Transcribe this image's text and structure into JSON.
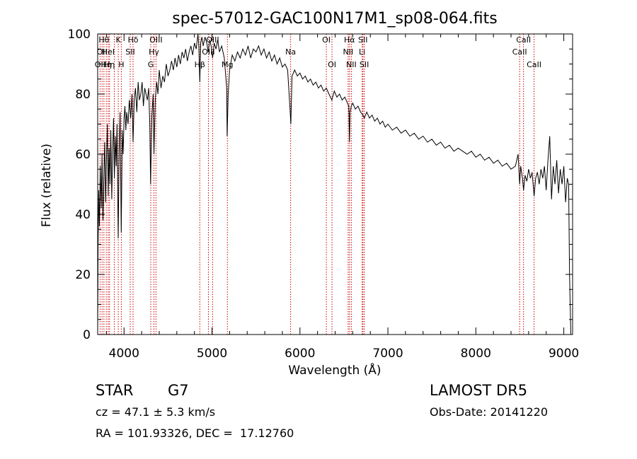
{
  "chart_data": {
    "type": "line",
    "title": "spec-57012-GAC100N17M1_sp08-064.fits",
    "xlabel": "Wavelength (Å)",
    "ylabel": "Flux (relative)",
    "xlim": [
      3700,
      9100
    ],
    "ylim": [
      0,
      100
    ],
    "xticks": [
      "4000",
      "5000",
      "6000",
      "7000",
      "8000",
      "9000"
    ],
    "yticks": [
      "0",
      "20",
      "40",
      "60",
      "80",
      "100"
    ],
    "line_color": "#000000",
    "marker_color": "#cc0000",
    "spectrum": [
      [
        3700,
        0
      ],
      [
        3705,
        30
      ],
      [
        3712,
        48
      ],
      [
        3720,
        36
      ],
      [
        3730,
        56
      ],
      [
        3740,
        42
      ],
      [
        3750,
        60
      ],
      [
        3760,
        38
      ],
      [
        3770,
        52
      ],
      [
        3780,
        64
      ],
      [
        3790,
        44
      ],
      [
        3800,
        58
      ],
      [
        3810,
        70
      ],
      [
        3820,
        46
      ],
      [
        3830,
        62
      ],
      [
        3840,
        50
      ],
      [
        3850,
        68
      ],
      [
        3860,
        45
      ],
      [
        3870,
        60
      ],
      [
        3880,
        72
      ],
      [
        3890,
        52
      ],
      [
        3900,
        66
      ],
      [
        3910,
        56
      ],
      [
        3920,
        70
      ],
      [
        3933,
        32
      ],
      [
        3945,
        62
      ],
      [
        3955,
        74
      ],
      [
        3968,
        34
      ],
      [
        3980,
        68
      ],
      [
        3990,
        60
      ],
      [
        4000,
        72
      ],
      [
        4010,
        76
      ],
      [
        4020,
        68
      ],
      [
        4030,
        74
      ],
      [
        4045,
        70
      ],
      [
        4060,
        78
      ],
      [
        4075,
        72
      ],
      [
        4090,
        80
      ],
      [
        4102,
        64
      ],
      [
        4115,
        78
      ],
      [
        4130,
        82
      ],
      [
        4145,
        74
      ],
      [
        4160,
        84
      ],
      [
        4175,
        78
      ],
      [
        4190,
        80
      ],
      [
        4205,
        84
      ],
      [
        4220,
        76
      ],
      [
        4235,
        82
      ],
      [
        4250,
        80
      ],
      [
        4265,
        78
      ],
      [
        4280,
        82
      ],
      [
        4292,
        70
      ],
      [
        4302,
        50
      ],
      [
        4315,
        72
      ],
      [
        4330,
        80
      ],
      [
        4340,
        60
      ],
      [
        4355,
        78
      ],
      [
        4370,
        84
      ],
      [
        4385,
        80
      ],
      [
        4400,
        88
      ],
      [
        4420,
        82
      ],
      [
        4440,
        86
      ],
      [
        4460,
        84
      ],
      [
        4480,
        90
      ],
      [
        4500,
        86
      ],
      [
        4520,
        88
      ],
      [
        4540,
        91
      ],
      [
        4560,
        88
      ],
      [
        4580,
        92
      ],
      [
        4600,
        89
      ],
      [
        4620,
        93
      ],
      [
        4640,
        90
      ],
      [
        4660,
        94
      ],
      [
        4680,
        92
      ],
      [
        4700,
        95
      ],
      [
        4720,
        91
      ],
      [
        4740,
        94
      ],
      [
        4760,
        96
      ],
      [
        4780,
        93
      ],
      [
        4800,
        97
      ],
      [
        4820,
        95
      ],
      [
        4840,
        100
      ],
      [
        4850,
        96
      ],
      [
        4861,
        84
      ],
      [
        4872,
        97
      ],
      [
        4885,
        99
      ],
      [
        4900,
        96
      ],
      [
        4920,
        99
      ],
      [
        4940,
        97
      ],
      [
        4958,
        94
      ],
      [
        4975,
        98
      ],
      [
        4990,
        96
      ],
      [
        5007,
        92
      ],
      [
        5025,
        97
      ],
      [
        5045,
        95
      ],
      [
        5065,
        98
      ],
      [
        5085,
        94
      ],
      [
        5110,
        96
      ],
      [
        5140,
        92
      ],
      [
        5167,
        82
      ],
      [
        5172,
        66
      ],
      [
        5184,
        80
      ],
      [
        5200,
        88
      ],
      [
        5230,
        93
      ],
      [
        5260,
        91
      ],
      [
        5290,
        94
      ],
      [
        5320,
        92
      ],
      [
        5350,
        95
      ],
      [
        5380,
        93
      ],
      [
        5410,
        96
      ],
      [
        5440,
        92
      ],
      [
        5470,
        95
      ],
      [
        5500,
        94
      ],
      [
        5530,
        96
      ],
      [
        5560,
        93
      ],
      [
        5590,
        95
      ],
      [
        5620,
        92
      ],
      [
        5650,
        94
      ],
      [
        5680,
        91
      ],
      [
        5710,
        93
      ],
      [
        5740,
        90
      ],
      [
        5770,
        92
      ],
      [
        5800,
        89
      ],
      [
        5830,
        90
      ],
      [
        5860,
        88
      ],
      [
        5889,
        74
      ],
      [
        5896,
        70
      ],
      [
        5910,
        86
      ],
      [
        5940,
        88
      ],
      [
        5970,
        86
      ],
      [
        6000,
        87
      ],
      [
        6030,
        85
      ],
      [
        6060,
        86
      ],
      [
        6090,
        84
      ],
      [
        6120,
        85
      ],
      [
        6150,
        83
      ],
      [
        6180,
        84
      ],
      [
        6210,
        82
      ],
      [
        6240,
        83
      ],
      [
        6270,
        81
      ],
      [
        6300,
        82
      ],
      [
        6330,
        80
      ],
      [
        6363,
        78
      ],
      [
        6390,
        81
      ],
      [
        6420,
        79
      ],
      [
        6450,
        80
      ],
      [
        6480,
        78
      ],
      [
        6510,
        79
      ],
      [
        6540,
        77
      ],
      [
        6555,
        76
      ],
      [
        6563,
        64
      ],
      [
        6570,
        74
      ],
      [
        6584,
        76
      ],
      [
        6600,
        77
      ],
      [
        6630,
        75
      ],
      [
        6660,
        76
      ],
      [
        6690,
        74
      ],
      [
        6716,
        73
      ],
      [
        6731,
        72
      ],
      [
        6760,
        74
      ],
      [
        6790,
        72
      ],
      [
        6820,
        73
      ],
      [
        6850,
        71
      ],
      [
        6880,
        72
      ],
      [
        6910,
        70
      ],
      [
        6940,
        71
      ],
      [
        6970,
        69
      ],
      [
        7000,
        70
      ],
      [
        7050,
        68
      ],
      [
        7100,
        69
      ],
      [
        7150,
        67
      ],
      [
        7200,
        68
      ],
      [
        7250,
        66
      ],
      [
        7300,
        67
      ],
      [
        7350,
        65
      ],
      [
        7400,
        66
      ],
      [
        7450,
        64
      ],
      [
        7500,
        65
      ],
      [
        7550,
        63
      ],
      [
        7600,
        64
      ],
      [
        7650,
        62
      ],
      [
        7700,
        63
      ],
      [
        7750,
        61
      ],
      [
        7800,
        62
      ],
      [
        7850,
        61
      ],
      [
        7900,
        60
      ],
      [
        7950,
        61
      ],
      [
        8000,
        59
      ],
      [
        8050,
        60
      ],
      [
        8100,
        58
      ],
      [
        8150,
        59
      ],
      [
        8200,
        57
      ],
      [
        8250,
        58
      ],
      [
        8300,
        56
      ],
      [
        8350,
        57
      ],
      [
        8400,
        55
      ],
      [
        8450,
        56
      ],
      [
        8480,
        60
      ],
      [
        8498,
        50
      ],
      [
        8510,
        56
      ],
      [
        8530,
        52
      ],
      [
        8542,
        48
      ],
      [
        8560,
        53
      ],
      [
        8580,
        51
      ],
      [
        8600,
        55
      ],
      [
        8620,
        52
      ],
      [
        8640,
        54
      ],
      [
        8662,
        46
      ],
      [
        8680,
        52
      ],
      [
        8700,
        54
      ],
      [
        8720,
        50
      ],
      [
        8740,
        55
      ],
      [
        8760,
        52
      ],
      [
        8780,
        56
      ],
      [
        8800,
        48
      ],
      [
        8820,
        58
      ],
      [
        8840,
        66
      ],
      [
        8860,
        45
      ],
      [
        8880,
        56
      ],
      [
        8900,
        50
      ],
      [
        8920,
        58
      ],
      [
        8940,
        47
      ],
      [
        8960,
        55
      ],
      [
        8980,
        50
      ],
      [
        9000,
        56
      ],
      [
        9020,
        44
      ],
      [
        9040,
        52
      ],
      [
        9055,
        50
      ],
      [
        9065,
        20
      ],
      [
        9080,
        0
      ],
      [
        9100,
        0
      ]
    ],
    "lines": [
      {
        "wave": 3727,
        "label": "OII",
        "row": 2
      },
      {
        "wave": 3750,
        "label": "OII",
        "row": 1
      },
      {
        "wave": 3771,
        "label": "Hθ",
        "row": 0
      },
      {
        "wave": 3798,
        "label": "Hη",
        "row": 2
      },
      {
        "wave": 3820,
        "label": "HeI",
        "row": 1
      },
      {
        "wave": 3835,
        "label": "Hη",
        "row": 2
      },
      {
        "wave": 3889,
        "label": "",
        "row": 2
      },
      {
        "wave": 3934,
        "label": "K",
        "row": 0
      },
      {
        "wave": 3969,
        "label": "H",
        "row": 2
      },
      {
        "wave": 4070,
        "label": "SII",
        "row": 1
      },
      {
        "wave": 4102,
        "label": "Hδ",
        "row": 0
      },
      {
        "wave": 4304,
        "label": "G",
        "row": 2
      },
      {
        "wave": 4340,
        "label": "Hγ",
        "row": 1
      },
      {
        "wave": 4363,
        "label": "OIII",
        "row": 0
      },
      {
        "wave": 4861,
        "label": "Hβ",
        "row": 2
      },
      {
        "wave": 4959,
        "label": "OIII",
        "row": 1
      },
      {
        "wave": 5007,
        "label": "OIII",
        "row": 0
      },
      {
        "wave": 5175,
        "label": "Mg",
        "row": 2
      },
      {
        "wave": 5894,
        "label": "Na",
        "row": 1
      },
      {
        "wave": 6300,
        "label": "OI",
        "row": 0
      },
      {
        "wave": 6364,
        "label": "OI",
        "row": 2
      },
      {
        "wave": 6548,
        "label": "NII",
        "row": 1
      },
      {
        "wave": 6563,
        "label": "Hα",
        "row": 0
      },
      {
        "wave": 6584,
        "label": "NII",
        "row": 2
      },
      {
        "wave": 6707,
        "label": "Li",
        "row": 1
      },
      {
        "wave": 6716,
        "label": "SII",
        "row": 0
      },
      {
        "wave": 6731,
        "label": "SII",
        "row": 2
      },
      {
        "wave": 8498,
        "label": "CaII",
        "row": 1
      },
      {
        "wave": 8542,
        "label": "CaII",
        "row": 0
      },
      {
        "wave": 8662,
        "label": "CaII",
        "row": 2
      }
    ]
  },
  "info": {
    "class": "STAR",
    "subclass": "G7",
    "redshift": "cz = 47.1 ± 5.3 km/s",
    "coords": "RA = 101.93326, DEC =  17.12760",
    "survey": "LAMOST DR5",
    "obsdate": "Obs-Date: 20141220"
  }
}
